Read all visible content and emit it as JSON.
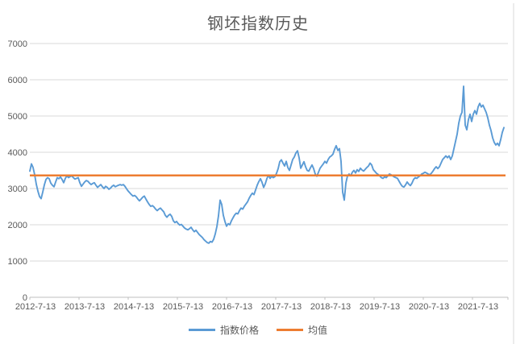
{
  "chart": {
    "title": "钢坯指数历史"
  },
  "chart_data": {
    "type": "line",
    "title": "钢坯指数历史",
    "xlabel": "",
    "ylabel": "",
    "ylim": [
      0,
      7000
    ],
    "y_ticks": [
      0,
      1000,
      2000,
      3000,
      4000,
      5000,
      6000,
      7000
    ],
    "x_tick_labels": [
      "2012-7-13",
      "2013-7-13",
      "2014-7-13",
      "2015-7-13",
      "2016-7-13",
      "2017-7-13",
      "2018-7-13",
      "2019-7-13",
      "2020-7-13",
      "2021-7-13"
    ],
    "grid": true,
    "legend_position": "bottom",
    "colors": {
      "grid": "#D9D9D9",
      "axis": "#BFBFBF",
      "text": "#595959"
    },
    "sampling_note": "values sampled uniformly in time from 2012-7-13 to ~2022-01",
    "series": [
      {
        "name": "指数价格",
        "color": "#5B9BD5",
        "values": [
          3480,
          3680,
          3580,
          3380,
          3120,
          2930,
          2780,
          2720,
          2900,
          3100,
          3250,
          3300,
          3270,
          3150,
          3090,
          3050,
          3180,
          3300,
          3270,
          3320,
          3250,
          3160,
          3280,
          3350,
          3300,
          3330,
          3350,
          3300,
          3260,
          3280,
          3300,
          3160,
          3060,
          3120,
          3180,
          3220,
          3200,
          3150,
          3110,
          3140,
          3160,
          3090,
          3030,
          3070,
          3110,
          3050,
          3000,
          3060,
          3030,
          2980,
          3010,
          3060,
          3090,
          3050,
          3070,
          3090,
          3110,
          3090,
          3110,
          3060,
          2990,
          2930,
          2880,
          2830,
          2790,
          2810,
          2770,
          2710,
          2660,
          2710,
          2760,
          2790,
          2710,
          2630,
          2560,
          2510,
          2530,
          2490,
          2430,
          2390,
          2430,
          2460,
          2410,
          2360,
          2260,
          2210,
          2260,
          2290,
          2230,
          2110,
          2060,
          2090,
          2030,
          1990,
          2010,
          1960,
          1910,
          1880,
          1860,
          1890,
          1930,
          1860,
          1810,
          1850,
          1790,
          1730,
          1690,
          1650,
          1590,
          1550,
          1510,
          1490,
          1540,
          1520,
          1600,
          1750,
          1950,
          2250,
          2680,
          2560,
          2260,
          2090,
          1960,
          2030,
          2000,
          2110,
          2190,
          2270,
          2320,
          2300,
          2390,
          2460,
          2430,
          2510,
          2570,
          2630,
          2730,
          2810,
          2870,
          2830,
          2960,
          3090,
          3190,
          3270,
          3170,
          3030,
          3130,
          3270,
          3370,
          3280,
          3340,
          3300,
          3330,
          3420,
          3550,
          3740,
          3790,
          3700,
          3620,
          3750,
          3580,
          3500,
          3650,
          3800,
          3870,
          3980,
          4040,
          3850,
          3560,
          3650,
          3740,
          3600,
          3500,
          3480,
          3570,
          3650,
          3550,
          3400,
          3340,
          3450,
          3560,
          3620,
          3680,
          3750,
          3700,
          3800,
          3870,
          3900,
          3950,
          4080,
          4180,
          4050,
          4100,
          3750,
          2900,
          2680,
          3150,
          3350,
          3400,
          3350,
          3450,
          3500,
          3430,
          3520,
          3470,
          3560,
          3510,
          3480,
          3530,
          3580,
          3620,
          3700,
          3650,
          3520,
          3470,
          3420,
          3390,
          3350,
          3300,
          3280,
          3320,
          3300,
          3350,
          3400,
          3380,
          3350,
          3320,
          3300,
          3280,
          3200,
          3120,
          3060,
          3040,
          3100,
          3180,
          3120,
          3080,
          3150,
          3250,
          3300,
          3280,
          3320,
          3350,
          3400,
          3420,
          3450,
          3430,
          3400,
          3380,
          3420,
          3480,
          3550,
          3600,
          3550,
          3600,
          3700,
          3800,
          3850,
          3900,
          3850,
          3900,
          3800,
          3900,
          4100,
          4300,
          4500,
          4800,
          5000,
          5100,
          5820,
          4750,
          4620,
          4900,
          5050,
          4850,
          5050,
          5150,
          5050,
          5250,
          5350,
          5250,
          5300,
          5200,
          5100,
          4950,
          4750,
          4600,
          4400,
          4270,
          4200,
          4250,
          4180,
          4350,
          4550,
          4680
        ]
      },
      {
        "name": "均值",
        "color": "#ED7D31",
        "value": 3360
      }
    ]
  }
}
